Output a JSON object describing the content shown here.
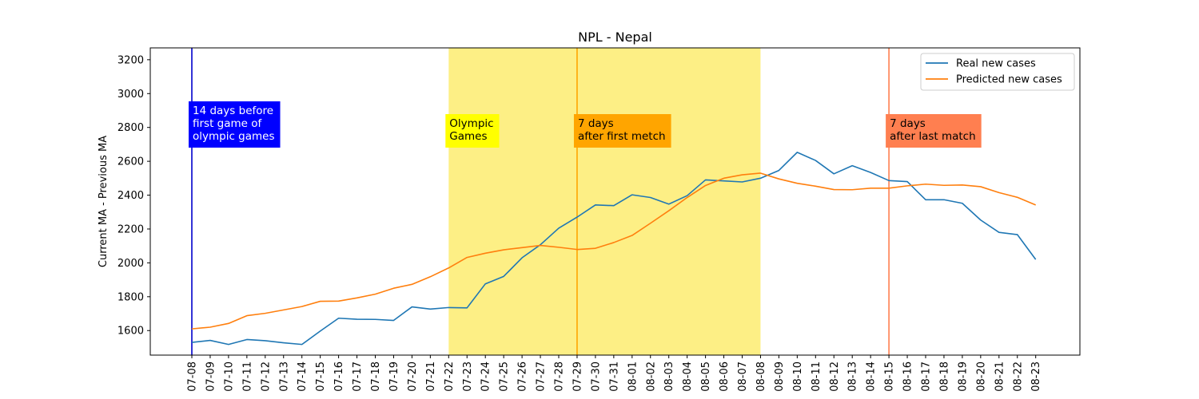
{
  "chart_data": {
    "type": "line",
    "title": "NPL - Nepal",
    "ylabel": "Current MA - Previous MA",
    "xlabel": "",
    "ylim": [
      1455,
      3270
    ],
    "yticks": [
      1600,
      1800,
      2000,
      2200,
      2400,
      2600,
      2800,
      3000,
      3200
    ],
    "categories": [
      "07-08",
      "07-09",
      "07-10",
      "07-11",
      "07-12",
      "07-13",
      "07-14",
      "07-15",
      "07-16",
      "07-17",
      "07-18",
      "07-19",
      "07-20",
      "07-21",
      "07-22",
      "07-23",
      "07-24",
      "07-25",
      "07-26",
      "07-27",
      "07-28",
      "07-29",
      "07-30",
      "07-31",
      "08-01",
      "08-02",
      "08-03",
      "08-04",
      "08-05",
      "08-06",
      "08-07",
      "08-08",
      "08-09",
      "08-10",
      "08-11",
      "08-12",
      "08-13",
      "08-14",
      "08-15",
      "08-16",
      "08-17",
      "08-18",
      "08-19",
      "08-20",
      "08-21",
      "08-22",
      "08-23"
    ],
    "series": [
      {
        "name": "Real new cases",
        "color": "#1f77b4",
        "values": [
          1530,
          1542,
          1518,
          1547,
          1540,
          1528,
          1518,
          1597,
          1673,
          1667,
          1666,
          1660,
          1740,
          1727,
          1736,
          1734,
          1876,
          1920,
          2030,
          2107,
          2205,
          2270,
          2342,
          2338,
          2402,
          2386,
          2347,
          2397,
          2490,
          2484,
          2478,
          2500,
          2546,
          2653,
          2605,
          2526,
          2574,
          2534,
          2486,
          2480,
          2373,
          2373,
          2352,
          2253,
          2180,
          2167,
          2020
        ]
      },
      {
        "name": "Predicted new cases",
        "color": "#ff7f0e",
        "values": [
          1610,
          1620,
          1642,
          1688,
          1702,
          1722,
          1742,
          1773,
          1774,
          1793,
          1815,
          1850,
          1873,
          1918,
          1970,
          2032,
          2057,
          2077,
          2090,
          2103,
          2092,
          2079,
          2086,
          2120,
          2162,
          2234,
          2308,
          2386,
          2457,
          2500,
          2520,
          2530,
          2496,
          2470,
          2453,
          2433,
          2432,
          2441,
          2441,
          2455,
          2465,
          2458,
          2460,
          2450,
          2415,
          2387,
          2342
        ]
      }
    ],
    "shaded_region": {
      "from": "07-22",
      "to": "08-08",
      "color": "#fdef85"
    },
    "vlines": [
      {
        "at": "07-08",
        "color": "#0000cc",
        "label": "14 days before\nfirst game of\nolympic games",
        "box_color": "#0000ff",
        "text_color": "#ffffff"
      },
      {
        "at": "07-22",
        "color": null,
        "label": "Olympic\nGames",
        "box_color": "#ffff00",
        "text_color": "#000000"
      },
      {
        "at": "07-29",
        "color": "#ffa500",
        "label": "7 days\nafter first metch",
        "box_color": "#ffa500",
        "text_color": "#000000"
      },
      {
        "at": "08-15",
        "color": "#ff7f50",
        "label": "7 days\nafter last match",
        "box_color": "#ff7f50",
        "text_color": "#000000"
      }
    ],
    "grid": false,
    "legend_position": "top-right"
  }
}
